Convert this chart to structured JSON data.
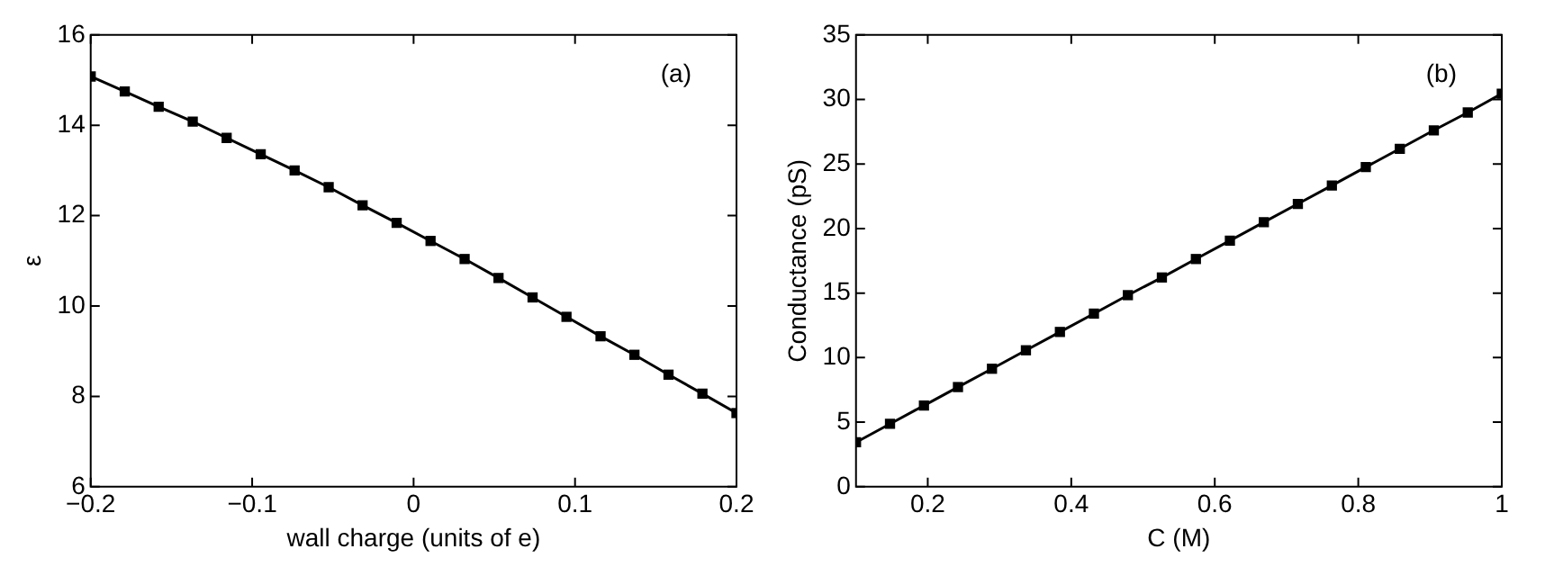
{
  "chart_data": [
    {
      "type": "line",
      "xlabel": "wall charge (units of e)",
      "ylabel": "ε",
      "annotations": [
        "(a)"
      ],
      "marker": "square",
      "line_style": "solid",
      "xlim": [
        -0.2,
        0.2
      ],
      "ylim": [
        6,
        16
      ],
      "xticks": [
        {
          "value": -0.2,
          "label": "−0.2"
        },
        {
          "value": -0.1,
          "label": "−0.1"
        },
        0,
        0.1,
        0.2
      ],
      "yticks": [
        6,
        8,
        10,
        12,
        14,
        16
      ],
      "x": [
        -0.2,
        -0.1789,
        -0.1579,
        -0.1368,
        -0.1158,
        -0.0947,
        -0.0737,
        -0.0526,
        -0.0316,
        -0.0105,
        0.0105,
        0.0316,
        0.0526,
        0.0737,
        0.0947,
        0.1158,
        0.1368,
        0.1579,
        0.1789,
        0.2
      ],
      "series": [
        {
          "color": "#000000",
          "values": [
            15.08,
            14.75,
            14.41,
            14.08,
            13.72,
            13.36,
            13.0,
            12.63,
            12.23,
            11.84,
            11.44,
            11.04,
            10.62,
            10.19,
            9.76,
            9.33,
            8.92,
            8.48,
            8.06,
            7.63
          ]
        }
      ]
    },
    {
      "type": "line",
      "xlabel": "C (M)",
      "ylabel": "Conductance (pS)",
      "annotations": [
        "(b)"
      ],
      "marker": "square",
      "line_style": "solid",
      "xlim": [
        0.1,
        1
      ],
      "ylim": [
        0,
        35
      ],
      "xticks": [
        0.2,
        0.4,
        0.6,
        0.8,
        1
      ],
      "yticks": [
        0,
        5,
        10,
        15,
        20,
        25,
        30,
        35
      ],
      "x": [
        0.1,
        0.1474,
        0.1947,
        0.2421,
        0.2895,
        0.3368,
        0.3842,
        0.4316,
        0.4789,
        0.5263,
        0.5737,
        0.6211,
        0.6684,
        0.7158,
        0.7632,
        0.8105,
        0.8579,
        0.9053,
        0.9526,
        1
      ],
      "series": [
        {
          "color": "#000000",
          "values": [
            3.44,
            4.87,
            6.29,
            7.72,
            9.14,
            10.57,
            11.99,
            13.41,
            14.84,
            16.21,
            17.64,
            19.06,
            20.49,
            21.91,
            23.33,
            24.76,
            26.18,
            27.61,
            28.99,
            30.45
          ]
        }
      ]
    }
  ]
}
